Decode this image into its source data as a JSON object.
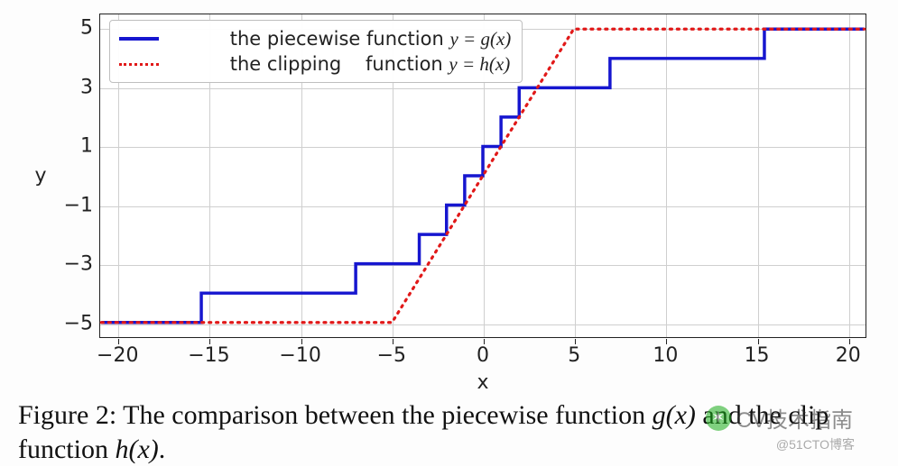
{
  "chart": {
    "type": "line",
    "background_color": "#ffffff",
    "grid_color": "#cfcfcf",
    "border_color": "#222222",
    "xlim": [
      -21,
      21
    ],
    "ylim": [
      -5.5,
      5.5
    ],
    "x_ticks": [
      -20,
      -15,
      -10,
      -5,
      0,
      5,
      10,
      15,
      20
    ],
    "y_ticks": [
      -5,
      -3,
      -1,
      1,
      3,
      5
    ],
    "x_label": "x",
    "y_label": "y",
    "label_fontsize": 22,
    "tick_fontsize": 22,
    "legend": {
      "position": "upper left",
      "items": [
        {
          "label_prefix": "the piecewise function ",
          "label_math": "y = g(x)",
          "color": "#1616cf",
          "style": "solid",
          "linewidth": 3.5
        },
        {
          "label_prefix": "the clipping    function ",
          "label_math": "y = h(x)",
          "color": "#e11919",
          "style": "dotted",
          "linewidth": 3.2
        }
      ]
    },
    "series": [
      {
        "name": "g(x) piecewise step",
        "color": "#1616cf",
        "style": "solid",
        "linewidth": 3.5,
        "points": [
          [
            -21,
            -5
          ],
          [
            -15.5,
            -5
          ],
          [
            -15.5,
            -4
          ],
          [
            -7,
            -4
          ],
          [
            -7,
            -3
          ],
          [
            -3.5,
            -3
          ],
          [
            -3.5,
            -2
          ],
          [
            -2,
            -2
          ],
          [
            -2,
            -1
          ],
          [
            -1,
            -1
          ],
          [
            -1,
            0
          ],
          [
            0,
            0
          ],
          [
            0,
            1
          ],
          [
            1,
            1
          ],
          [
            1,
            2
          ],
          [
            2,
            2
          ],
          [
            2,
            3
          ],
          [
            3.5,
            3
          ],
          [
            3.5,
            3
          ],
          [
            7,
            3
          ],
          [
            7,
            4
          ],
          [
            15.5,
            4
          ],
          [
            15.5,
            5
          ],
          [
            21,
            5
          ]
        ],
        "points_corrected": [
          [
            -21,
            -5
          ],
          [
            -15.5,
            -5
          ],
          [
            -15.5,
            -4
          ],
          [
            -7,
            -4
          ],
          [
            -7,
            -3
          ],
          [
            -3.5,
            -3
          ],
          [
            -3.5,
            -2
          ],
          [
            -2,
            -2
          ],
          [
            -2,
            -1
          ],
          [
            -1,
            -1
          ],
          [
            -1,
            0
          ],
          [
            0,
            0
          ],
          [
            0,
            1
          ],
          [
            1,
            1
          ],
          [
            1,
            2
          ],
          [
            2,
            2
          ],
          [
            2,
            3
          ],
          [
            7,
            3
          ],
          [
            7,
            4
          ],
          [
            15.5,
            4
          ],
          [
            15.5,
            5
          ],
          [
            21,
            5
          ]
        ]
      },
      {
        "name": "h(x) clipping",
        "color": "#e11919",
        "style": "dotted",
        "linewidth": 3.2,
        "points": [
          [
            -21,
            -5
          ],
          [
            -5,
            -5
          ],
          [
            5,
            5
          ],
          [
            21,
            5
          ]
        ]
      }
    ]
  },
  "caption": {
    "label": "Figure 2:",
    "text_before": " The comparison between the piecewise function ",
    "math1": "g(x)",
    "text_mid": " and the clip function ",
    "math2": "h(x)",
    "text_after": ".",
    "fontsize": 30
  },
  "watermark": {
    "logo_text": "CV技术指南",
    "blog_text": "@51CTO博客"
  }
}
